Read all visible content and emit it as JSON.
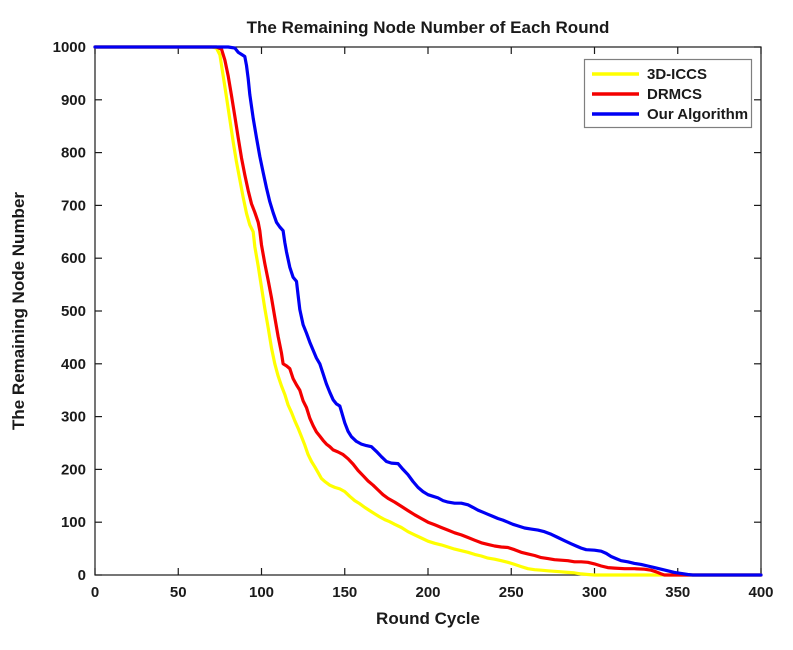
{
  "figure": {
    "background": "#ffffff",
    "axis_color": "#1a1a1a"
  },
  "chart_data": {
    "type": "line",
    "title": "The Remaining Node Number of Each Round",
    "xlabel": "Round Cycle",
    "ylabel": "The Remaining Node Number",
    "xlim": [
      0,
      400
    ],
    "ylim": [
      0,
      1000
    ],
    "x_ticks": [
      0,
      50,
      100,
      150,
      200,
      250,
      300,
      350,
      400
    ],
    "y_ticks": [
      0,
      100,
      200,
      300,
      400,
      500,
      600,
      700,
      800,
      900,
      1000
    ],
    "grid": false,
    "legend": {
      "position": "northeast",
      "border_color": "#7f7f7f",
      "background": "#ffffff"
    },
    "series": [
      {
        "name": "3D-ICCS",
        "color": "#ffff00",
        "points": [
          [
            0,
            1000
          ],
          [
            30,
            1000
          ],
          [
            60,
            1000
          ],
          [
            70,
            1000
          ],
          [
            73,
            998
          ],
          [
            75,
            985
          ],
          [
            77,
            945
          ],
          [
            79,
            905
          ],
          [
            81,
            862
          ],
          [
            83,
            820
          ],
          [
            85,
            782
          ],
          [
            87,
            748
          ],
          [
            89,
            715
          ],
          [
            91,
            685
          ],
          [
            93,
            663
          ],
          [
            95,
            650
          ],
          [
            96,
            622
          ],
          [
            98,
            585
          ],
          [
            100,
            545
          ],
          [
            102,
            505
          ],
          [
            104,
            468
          ],
          [
            106,
            430
          ],
          [
            108,
            400
          ],
          [
            110,
            377
          ],
          [
            112,
            358
          ],
          [
            114,
            342
          ],
          [
            116,
            322
          ],
          [
            118,
            308
          ],
          [
            120,
            292
          ],
          [
            122,
            278
          ],
          [
            124,
            262
          ],
          [
            126,
            246
          ],
          [
            128,
            228
          ],
          [
            130,
            215
          ],
          [
            132,
            205
          ],
          [
            134,
            194
          ],
          [
            136,
            183
          ],
          [
            138,
            177
          ],
          [
            141,
            170
          ],
          [
            144,
            166
          ],
          [
            147,
            163
          ],
          [
            150,
            158
          ],
          [
            153,
            149
          ],
          [
            156,
            141
          ],
          [
            159,
            135
          ],
          [
            162,
            128
          ],
          [
            165,
            122
          ],
          [
            168,
            116
          ],
          [
            171,
            110
          ],
          [
            174,
            105
          ],
          [
            177,
            101
          ],
          [
            180,
            96
          ],
          [
            184,
            90
          ],
          [
            188,
            82
          ],
          [
            192,
            76
          ],
          [
            196,
            70
          ],
          [
            200,
            64
          ],
          [
            204,
            60
          ],
          [
            208,
            57
          ],
          [
            212,
            53
          ],
          [
            216,
            49
          ],
          [
            220,
            46
          ],
          [
            224,
            43
          ],
          [
            228,
            39
          ],
          [
            232,
            36
          ],
          [
            236,
            32
          ],
          [
            240,
            30
          ],
          [
            244,
            27
          ],
          [
            248,
            24
          ],
          [
            252,
            20
          ],
          [
            256,
            16
          ],
          [
            260,
            12
          ],
          [
            264,
            10
          ],
          [
            268,
            9
          ],
          [
            272,
            8
          ],
          [
            276,
            7
          ],
          [
            280,
            6
          ],
          [
            284,
            5
          ],
          [
            288,
            4
          ],
          [
            292,
            2
          ],
          [
            296,
            1
          ],
          [
            300,
            0
          ],
          [
            330,
            0
          ],
          [
            360,
            0
          ],
          [
            400,
            0
          ]
        ]
      },
      {
        "name": "DRMCS",
        "color": "#f40000",
        "points": [
          [
            0,
            1000
          ],
          [
            30,
            1000
          ],
          [
            60,
            1000
          ],
          [
            73,
            1000
          ],
          [
            76,
            996
          ],
          [
            78,
            975
          ],
          [
            80,
            945
          ],
          [
            82,
            908
          ],
          [
            84,
            868
          ],
          [
            86,
            828
          ],
          [
            88,
            790
          ],
          [
            90,
            758
          ],
          [
            92,
            728
          ],
          [
            94,
            703
          ],
          [
            96,
            687
          ],
          [
            98,
            668
          ],
          [
            99,
            652
          ],
          [
            100,
            625
          ],
          [
            102,
            590
          ],
          [
            104,
            558
          ],
          [
            106,
            525
          ],
          [
            108,
            488
          ],
          [
            110,
            452
          ],
          [
            112,
            420
          ],
          [
            113,
            400
          ],
          [
            115,
            396
          ],
          [
            117,
            391
          ],
          [
            119,
            372
          ],
          [
            121,
            360
          ],
          [
            123,
            350
          ],
          [
            125,
            330
          ],
          [
            127,
            317
          ],
          [
            129,
            297
          ],
          [
            131,
            283
          ],
          [
            133,
            271
          ],
          [
            135,
            263
          ],
          [
            137,
            255
          ],
          [
            139,
            248
          ],
          [
            141,
            243
          ],
          [
            143,
            237
          ],
          [
            146,
            233
          ],
          [
            149,
            228
          ],
          [
            152,
            220
          ],
          [
            155,
            210
          ],
          [
            158,
            198
          ],
          [
            161,
            188
          ],
          [
            164,
            178
          ],
          [
            167,
            170
          ],
          [
            170,
            161
          ],
          [
            173,
            152
          ],
          [
            176,
            145
          ],
          [
            180,
            138
          ],
          [
            184,
            130
          ],
          [
            188,
            122
          ],
          [
            192,
            114
          ],
          [
            196,
            107
          ],
          [
            200,
            100
          ],
          [
            204,
            95
          ],
          [
            208,
            90
          ],
          [
            212,
            85
          ],
          [
            216,
            80
          ],
          [
            220,
            76
          ],
          [
            224,
            71
          ],
          [
            228,
            66
          ],
          [
            232,
            61
          ],
          [
            236,
            58
          ],
          [
            240,
            55
          ],
          [
            244,
            53
          ],
          [
            248,
            52
          ],
          [
            252,
            48
          ],
          [
            256,
            43
          ],
          [
            260,
            40
          ],
          [
            264,
            37
          ],
          [
            268,
            33
          ],
          [
            272,
            31
          ],
          [
            276,
            29
          ],
          [
            280,
            28
          ],
          [
            284,
            27
          ],
          [
            288,
            25
          ],
          [
            292,
            25
          ],
          [
            296,
            24
          ],
          [
            300,
            21
          ],
          [
            304,
            17
          ],
          [
            308,
            14
          ],
          [
            312,
            13
          ],
          [
            318,
            12
          ],
          [
            324,
            12
          ],
          [
            330,
            11
          ],
          [
            334,
            9
          ],
          [
            337,
            6
          ],
          [
            340,
            2
          ],
          [
            342,
            0
          ],
          [
            360,
            0
          ],
          [
            400,
            0
          ]
        ]
      },
      {
        "name": "Our Algorithm",
        "color": "#0000f4",
        "points": [
          [
            0,
            1000
          ],
          [
            30,
            1000
          ],
          [
            60,
            1000
          ],
          [
            80,
            1000
          ],
          [
            84,
            998
          ],
          [
            86,
            990
          ],
          [
            88,
            986
          ],
          [
            90,
            982
          ],
          [
            91,
            965
          ],
          [
            92,
            940
          ],
          [
            93,
            910
          ],
          [
            95,
            865
          ],
          [
            97,
            828
          ],
          [
            99,
            793
          ],
          [
            101,
            762
          ],
          [
            103,
            733
          ],
          [
            105,
            707
          ],
          [
            107,
            686
          ],
          [
            109,
            668
          ],
          [
            111,
            659
          ],
          [
            113,
            652
          ],
          [
            114,
            630
          ],
          [
            115,
            612
          ],
          [
            117,
            583
          ],
          [
            119,
            564
          ],
          [
            121,
            556
          ],
          [
            122,
            530
          ],
          [
            123,
            503
          ],
          [
            125,
            474
          ],
          [
            127,
            458
          ],
          [
            129,
            441
          ],
          [
            131,
            426
          ],
          [
            133,
            411
          ],
          [
            135,
            400
          ],
          [
            137,
            381
          ],
          [
            139,
            362
          ],
          [
            141,
            346
          ],
          [
            143,
            332
          ],
          [
            145,
            324
          ],
          [
            147,
            320
          ],
          [
            148,
            310
          ],
          [
            150,
            288
          ],
          [
            152,
            272
          ],
          [
            154,
            262
          ],
          [
            157,
            253
          ],
          [
            160,
            248
          ],
          [
            163,
            245
          ],
          [
            166,
            243
          ],
          [
            169,
            234
          ],
          [
            172,
            224
          ],
          [
            175,
            215
          ],
          [
            178,
            212
          ],
          [
            182,
            211
          ],
          [
            185,
            200
          ],
          [
            188,
            190
          ],
          [
            191,
            177
          ],
          [
            194,
            166
          ],
          [
            197,
            158
          ],
          [
            200,
            152
          ],
          [
            203,
            149
          ],
          [
            206,
            146
          ],
          [
            209,
            141
          ],
          [
            212,
            138
          ],
          [
            216,
            136
          ],
          [
            220,
            136
          ],
          [
            224,
            133
          ],
          [
            227,
            128
          ],
          [
            230,
            123
          ],
          [
            233,
            119
          ],
          [
            236,
            115
          ],
          [
            239,
            111
          ],
          [
            242,
            107
          ],
          [
            245,
            104
          ],
          [
            248,
            100
          ],
          [
            251,
            96
          ],
          [
            254,
            93
          ],
          [
            258,
            89
          ],
          [
            262,
            87
          ],
          [
            266,
            85
          ],
          [
            270,
            82
          ],
          [
            274,
            77
          ],
          [
            278,
            71
          ],
          [
            282,
            65
          ],
          [
            286,
            59
          ],
          [
            289,
            55
          ],
          [
            292,
            51
          ],
          [
            295,
            48
          ],
          [
            300,
            47
          ],
          [
            304,
            45
          ],
          [
            307,
            41
          ],
          [
            310,
            35
          ],
          [
            313,
            31
          ],
          [
            316,
            27
          ],
          [
            320,
            25
          ],
          [
            324,
            22
          ],
          [
            328,
            20
          ],
          [
            332,
            17
          ],
          [
            336,
            14
          ],
          [
            340,
            11
          ],
          [
            344,
            8
          ],
          [
            348,
            5
          ],
          [
            352,
            3
          ],
          [
            356,
            1
          ],
          [
            359,
            0
          ],
          [
            370,
            0
          ],
          [
            385,
            0
          ],
          [
            400,
            0
          ]
        ]
      }
    ]
  }
}
